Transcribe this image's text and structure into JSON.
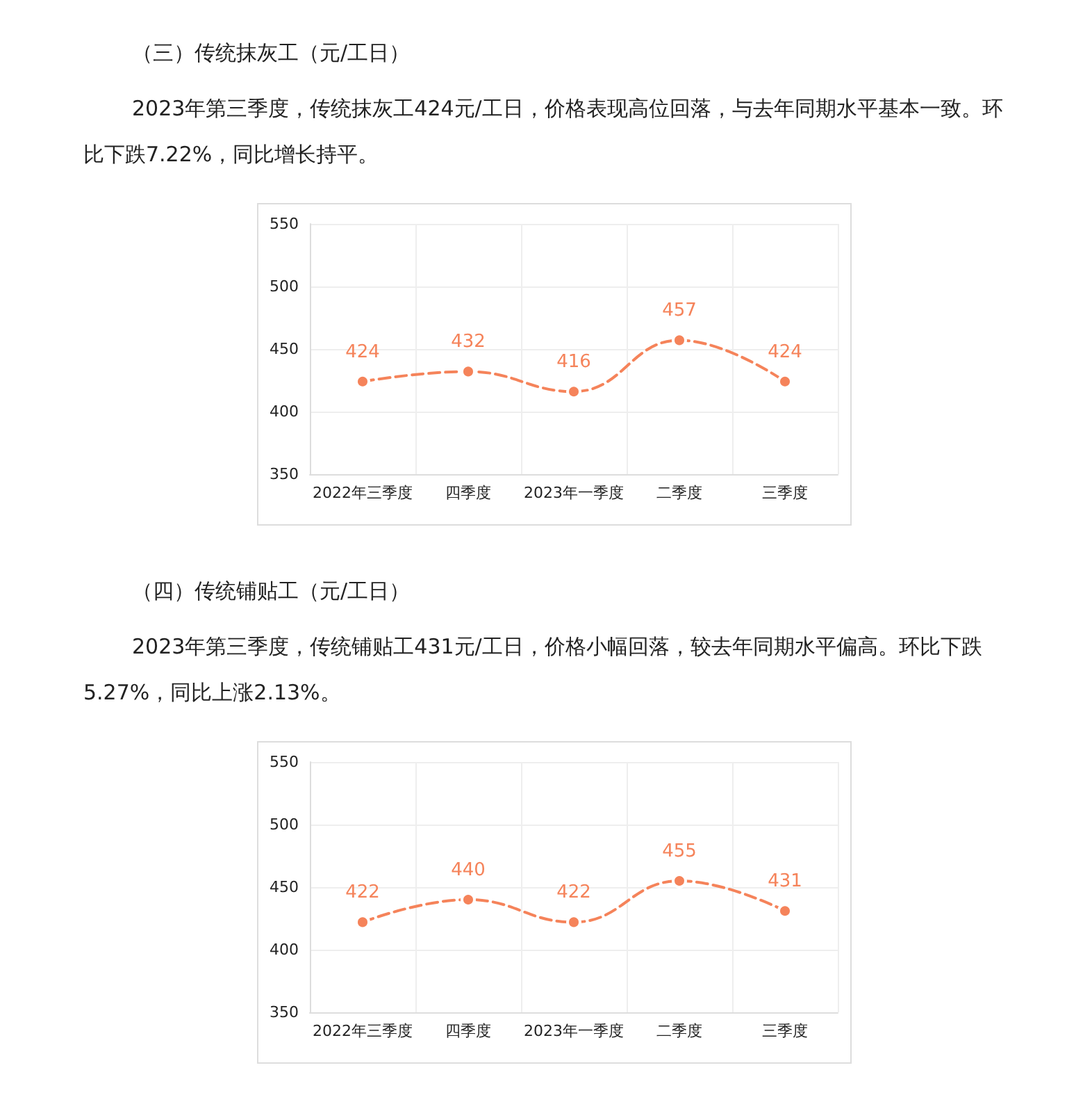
{
  "chart_data": [
    {
      "type": "line",
      "title": "（三）传统抹灰工（元/工日）",
      "subtitle": "2023年第三季度，传统抹灰工424元/工日，价格表现高位回落，与去年同期水平基本一致。环比下跌7.22%，同比增长持平。",
      "categories": [
        "2022年三季度",
        "四季度",
        "2023年一季度",
        "二季度",
        "三季度"
      ],
      "values": [
        424,
        432,
        416,
        457,
        424
      ],
      "color": "#f5835a",
      "ylim": [
        350,
        550
      ],
      "yticks": [
        350,
        400,
        450,
        500,
        550
      ],
      "grid": true,
      "marker": "circle",
      "line_style": "dashed",
      "data_labels": true
    },
    {
      "type": "line",
      "title": "（四）传统铺贴工（元/工日）",
      "subtitle": "2023年第三季度，传统铺贴工431元/工日，价格小幅回落，较去年同期水平偏高。环比下跌5.27%，同比上涨2.13%。",
      "categories": [
        "2022年三季度",
        "四季度",
        "2023年一季度",
        "二季度",
        "三季度"
      ],
      "values": [
        422,
        440,
        422,
        455,
        431
      ],
      "color": "#f5835a",
      "ylim": [
        350,
        550
      ],
      "yticks": [
        350,
        400,
        450,
        500,
        550
      ],
      "grid": true,
      "marker": "circle",
      "line_style": "dashed",
      "data_labels": true
    }
  ]
}
